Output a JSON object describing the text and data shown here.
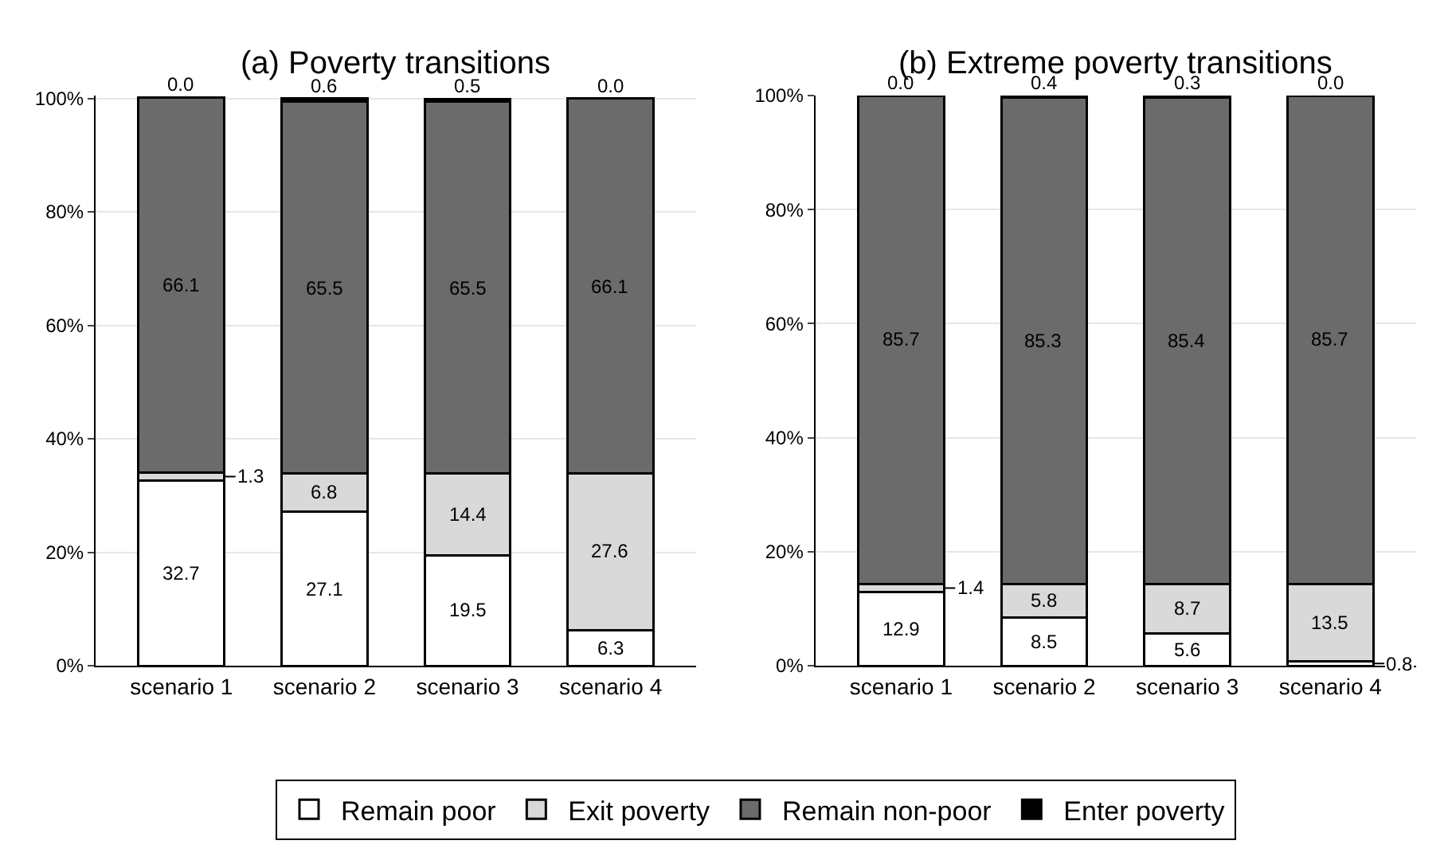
{
  "chart_data": [
    {
      "type": "bar",
      "title": "(a) Poverty transitions",
      "categories": [
        "scenario 1",
        "scenario 2",
        "scenario 3",
        "scenario 4"
      ],
      "stacked": true,
      "legend": "bottom",
      "grid": "y",
      "ylim": [
        0,
        100.5
      ],
      "yticks": [
        {
          "value": 0,
          "label": "0%"
        },
        {
          "value": 20,
          "label": "20%"
        },
        {
          "value": 40,
          "label": "40%"
        },
        {
          "value": 60,
          "label": "60%"
        },
        {
          "value": 80,
          "label": "80%"
        },
        {
          "value": 100,
          "label": "100%"
        }
      ],
      "series": [
        {
          "name": "Remain poor",
          "color": "#ffffff",
          "values": [
            32.7,
            27.1,
            19.5,
            6.3
          ],
          "value_labels": [
            "32.7",
            "27.1",
            "19.5",
            "6.3"
          ]
        },
        {
          "name": "Exit poverty",
          "color": "#d9d9d9",
          "values": [
            1.3,
            6.8,
            14.4,
            27.6
          ],
          "value_labels": [
            "1.3",
            "6.8",
            "14.4",
            "27.6"
          ]
        },
        {
          "name": "Remain non-poor",
          "color": "#6b6b6b",
          "values": [
            66.1,
            65.5,
            65.5,
            66.1
          ],
          "value_labels": [
            "66.1",
            "65.5",
            "65.5",
            "66.1"
          ]
        },
        {
          "name": "Enter poverty",
          "color": "#000000",
          "values": [
            0.0,
            0.6,
            0.5,
            0.0
          ],
          "value_labels": [
            "0.0",
            "0.6",
            "0.5",
            "0.0"
          ]
        }
      ]
    },
    {
      "type": "bar",
      "title": "(b) Extreme poverty transitions",
      "categories": [
        "scenario 1",
        "scenario 2",
        "scenario 3",
        "scenario 4"
      ],
      "stacked": true,
      "grid": "y",
      "ylim": [
        0,
        100
      ],
      "yticks": [
        {
          "value": 0,
          "label": "0%"
        },
        {
          "value": 20,
          "label": "20%"
        },
        {
          "value": 40,
          "label": "40%"
        },
        {
          "value": 60,
          "label": "60%"
        },
        {
          "value": 80,
          "label": "80%"
        },
        {
          "value": 100,
          "label": "100%"
        }
      ],
      "series": [
        {
          "name": "Remain poor",
          "color": "#ffffff",
          "values": [
            12.9,
            8.5,
            5.6,
            0.8
          ],
          "value_labels": [
            "12.9",
            "8.5",
            "5.6",
            "0.8"
          ]
        },
        {
          "name": "Exit poverty",
          "color": "#d9d9d9",
          "values": [
            1.4,
            5.8,
            8.7,
            13.5
          ],
          "value_labels": [
            "1.4",
            "5.8",
            "8.7",
            "13.5"
          ]
        },
        {
          "name": "Remain non-poor",
          "color": "#6b6b6b",
          "values": [
            85.7,
            85.3,
            85.4,
            85.7
          ],
          "value_labels": [
            "85.7",
            "85.3",
            "85.4",
            "85.7"
          ]
        },
        {
          "name": "Enter poverty",
          "color": "#000000",
          "values": [
            0.0,
            0.4,
            0.3,
            0.0
          ],
          "value_labels": [
            "0.0",
            "0.4",
            "0.3",
            "0.0"
          ]
        }
      ]
    }
  ]
}
